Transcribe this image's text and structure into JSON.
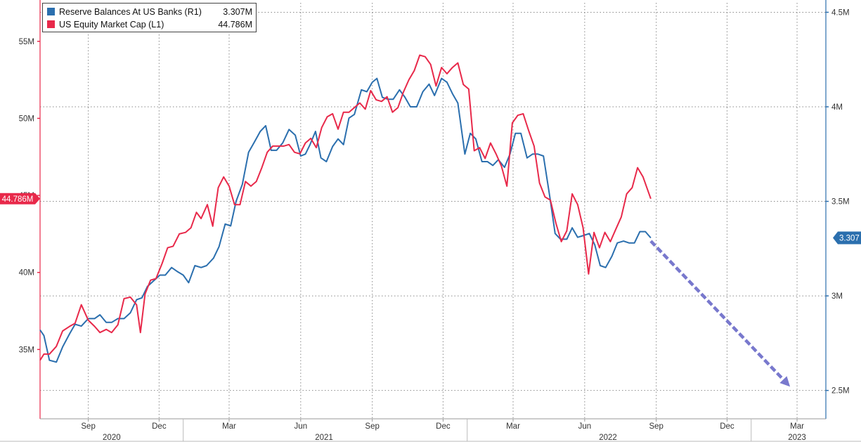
{
  "legend": {
    "items": [
      {
        "name": "Reserve Balances At US Banks (R1)",
        "value": "3.307M",
        "color": "#2b6fae"
      },
      {
        "name": "US Equity Market Cap  (L1)",
        "value": "44.786M",
        "color": "#e8294a"
      }
    ]
  },
  "chart_data": {
    "type": "line",
    "x_range": [
      "2020-07-01",
      "2023-04-07"
    ],
    "left_axis": {
      "ticks": [
        "35M",
        "40M",
        "45M",
        "50M",
        "55M"
      ],
      "tick_values": [
        35,
        40,
        45,
        50,
        55
      ],
      "range": [
        30.5,
        57.5
      ],
      "current_label": "44.786M"
    },
    "right_axis": {
      "ticks": [
        "2.5M",
        "3M",
        "3.5M",
        "4M",
        "4.5M"
      ],
      "tick_values": [
        2.5,
        3,
        3.5,
        4,
        4.5
      ],
      "range": [
        2.35,
        4.55
      ],
      "current_label": "3.307"
    },
    "x_month_ticks": [
      {
        "label": "Sep",
        "date": "2020-09-01"
      },
      {
        "label": "Dec",
        "date": "2020-12-01"
      },
      {
        "label": "Mar",
        "date": "2021-03-01"
      },
      {
        "label": "Jun",
        "date": "2021-06-01"
      },
      {
        "label": "Sep",
        "date": "2021-09-01"
      },
      {
        "label": "Dec",
        "date": "2021-12-01"
      },
      {
        "label": "Mar",
        "date": "2022-03-01"
      },
      {
        "label": "Jun",
        "date": "2022-06-01"
      },
      {
        "label": "Sep",
        "date": "2022-09-01"
      },
      {
        "label": "Dec",
        "date": "2022-12-01"
      },
      {
        "label": "Mar",
        "date": "2023-03-01"
      }
    ],
    "x_year_labels": [
      {
        "label": "2020",
        "date": "2020-10-01"
      },
      {
        "label": "2021",
        "date": "2021-07-01"
      },
      {
        "label": "2022",
        "date": "2022-07-01"
      },
      {
        "label": "2023",
        "date": "2023-03-01"
      }
    ],
    "year_dividers": [
      "2021-01-01",
      "2022-01-01",
      "2023-01-01"
    ],
    "grid": true,
    "series": [
      {
        "name": "Reserve Balances At US Banks (R1)",
        "axis": "right",
        "color": "#2b6fae",
        "points": [
          [
            "2020-07-01",
            2.82
          ],
          [
            "2020-07-06",
            2.79
          ],
          [
            "2020-07-13",
            2.66
          ],
          [
            "2020-07-22",
            2.65
          ],
          [
            "2020-07-30",
            2.73
          ],
          [
            "2020-08-08",
            2.8
          ],
          [
            "2020-08-15",
            2.85
          ],
          [
            "2020-08-23",
            2.84
          ],
          [
            "2020-09-01",
            2.88
          ],
          [
            "2020-09-09",
            2.88
          ],
          [
            "2020-09-16",
            2.9
          ],
          [
            "2020-09-24",
            2.86
          ],
          [
            "2020-10-01",
            2.86
          ],
          [
            "2020-10-09",
            2.88
          ],
          [
            "2020-10-17",
            2.88
          ],
          [
            "2020-10-25",
            2.91
          ],
          [
            "2020-11-02",
            2.98
          ],
          [
            "2020-11-09",
            2.99
          ],
          [
            "2020-11-16",
            3.05
          ],
          [
            "2020-11-24",
            3.08
          ],
          [
            "2020-12-02",
            3.11
          ],
          [
            "2020-12-09",
            3.11
          ],
          [
            "2020-12-17",
            3.15
          ],
          [
            "2020-12-24",
            3.13
          ],
          [
            "2021-01-01",
            3.11
          ],
          [
            "2021-01-08",
            3.07
          ],
          [
            "2021-01-16",
            3.16
          ],
          [
            "2021-01-24",
            3.15
          ],
          [
            "2021-01-31",
            3.16
          ],
          [
            "2021-02-09",
            3.2
          ],
          [
            "2021-02-16",
            3.26
          ],
          [
            "2021-02-24",
            3.38
          ],
          [
            "2021-03-03",
            3.37
          ],
          [
            "2021-03-10",
            3.5
          ],
          [
            "2021-03-18",
            3.59
          ],
          [
            "2021-03-26",
            3.76
          ],
          [
            "2021-04-02",
            3.81
          ],
          [
            "2021-04-10",
            3.87
          ],
          [
            "2021-04-17",
            3.9
          ],
          [
            "2021-04-24",
            3.77
          ],
          [
            "2021-05-01",
            3.77
          ],
          [
            "2021-05-09",
            3.81
          ],
          [
            "2021-05-17",
            3.88
          ],
          [
            "2021-05-25",
            3.85
          ],
          [
            "2021-06-01",
            3.74
          ],
          [
            "2021-06-07",
            3.75
          ],
          [
            "2021-06-13",
            3.8
          ],
          [
            "2021-06-20",
            3.87
          ],
          [
            "2021-06-27",
            3.73
          ],
          [
            "2021-07-04",
            3.71
          ],
          [
            "2021-07-12",
            3.79
          ],
          [
            "2021-07-19",
            3.83
          ],
          [
            "2021-07-26",
            3.8
          ],
          [
            "2021-08-02",
            3.94
          ],
          [
            "2021-08-09",
            3.96
          ],
          [
            "2021-08-18",
            4.09
          ],
          [
            "2021-08-25",
            4.08
          ],
          [
            "2021-09-01",
            4.13
          ],
          [
            "2021-09-07",
            4.15
          ],
          [
            "2021-09-14",
            4.05
          ],
          [
            "2021-09-21",
            4.04
          ],
          [
            "2021-09-28",
            4.04
          ],
          [
            "2021-10-06",
            4.09
          ],
          [
            "2021-10-13",
            4.05
          ],
          [
            "2021-10-20",
            4.0
          ],
          [
            "2021-10-28",
            4.0
          ],
          [
            "2021-11-05",
            4.08
          ],
          [
            "2021-11-13",
            4.12
          ],
          [
            "2021-11-20",
            4.06
          ],
          [
            "2021-11-29",
            4.15
          ],
          [
            "2021-12-06",
            4.13
          ],
          [
            "2021-12-13",
            4.07
          ],
          [
            "2021-12-20",
            4.02
          ],
          [
            "2021-12-29",
            3.75
          ],
          [
            "2022-01-05",
            3.86
          ],
          [
            "2022-01-12",
            3.83
          ],
          [
            "2022-01-20",
            3.71
          ],
          [
            "2022-01-27",
            3.71
          ],
          [
            "2022-02-03",
            3.69
          ],
          [
            "2022-02-10",
            3.72
          ],
          [
            "2022-02-18",
            3.68
          ],
          [
            "2022-02-25",
            3.75
          ],
          [
            "2022-03-04",
            3.86
          ],
          [
            "2022-03-11",
            3.86
          ],
          [
            "2022-03-19",
            3.73
          ],
          [
            "2022-03-26",
            3.75
          ],
          [
            "2022-04-02",
            3.75
          ],
          [
            "2022-04-09",
            3.74
          ],
          [
            "2022-04-17",
            3.53
          ],
          [
            "2022-04-24",
            3.33
          ],
          [
            "2022-05-01",
            3.3
          ],
          [
            "2022-05-09",
            3.3
          ],
          [
            "2022-05-16",
            3.36
          ],
          [
            "2022-05-23",
            3.31
          ],
          [
            "2022-05-31",
            3.32
          ],
          [
            "2022-06-07",
            3.33
          ],
          [
            "2022-06-14",
            3.27
          ],
          [
            "2022-06-21",
            3.16
          ],
          [
            "2022-06-28",
            3.15
          ],
          [
            "2022-07-06",
            3.21
          ],
          [
            "2022-07-13",
            3.28
          ],
          [
            "2022-07-21",
            3.29
          ],
          [
            "2022-07-28",
            3.28
          ],
          [
            "2022-08-04",
            3.28
          ],
          [
            "2022-08-11",
            3.34
          ],
          [
            "2022-08-18",
            3.34
          ],
          [
            "2022-08-25",
            3.307
          ]
        ]
      },
      {
        "name": "US Equity Market Cap  (L1)",
        "axis": "left",
        "color": "#e8294a",
        "points": [
          [
            "2020-07-01",
            34.3
          ],
          [
            "2020-07-06",
            34.7
          ],
          [
            "2020-07-13",
            34.7
          ],
          [
            "2020-07-22",
            35.2
          ],
          [
            "2020-07-30",
            36.2
          ],
          [
            "2020-08-08",
            36.5
          ],
          [
            "2020-08-15",
            36.7
          ],
          [
            "2020-08-23",
            37.9
          ],
          [
            "2020-09-01",
            36.9
          ],
          [
            "2020-09-09",
            36.5
          ],
          [
            "2020-09-16",
            36.1
          ],
          [
            "2020-09-24",
            36.3
          ],
          [
            "2020-10-01",
            36.1
          ],
          [
            "2020-10-09",
            36.6
          ],
          [
            "2020-10-17",
            38.3
          ],
          [
            "2020-10-25",
            38.4
          ],
          [
            "2020-11-02",
            37.9
          ],
          [
            "2020-11-07",
            36.1
          ],
          [
            "2020-11-13",
            38.6
          ],
          [
            "2020-11-20",
            39.5
          ],
          [
            "2020-11-27",
            39.6
          ],
          [
            "2020-12-05",
            40.6
          ],
          [
            "2020-12-12",
            41.6
          ],
          [
            "2020-12-19",
            41.7
          ],
          [
            "2020-12-27",
            42.5
          ],
          [
            "2021-01-04",
            42.6
          ],
          [
            "2021-01-11",
            42.9
          ],
          [
            "2021-01-18",
            43.9
          ],
          [
            "2021-01-24",
            43.5
          ],
          [
            "2021-02-01",
            44.4
          ],
          [
            "2021-02-08",
            43.0
          ],
          [
            "2021-02-15",
            45.5
          ],
          [
            "2021-02-22",
            46.2
          ],
          [
            "2021-03-01",
            45.6
          ],
          [
            "2021-03-08",
            44.4
          ],
          [
            "2021-03-15",
            44.4
          ],
          [
            "2021-03-22",
            45.9
          ],
          [
            "2021-03-29",
            45.6
          ],
          [
            "2021-04-05",
            45.9
          ],
          [
            "2021-04-12",
            46.8
          ],
          [
            "2021-04-19",
            47.8
          ],
          [
            "2021-04-26",
            48.2
          ],
          [
            "2021-05-03",
            48.2
          ],
          [
            "2021-05-10",
            48.2
          ],
          [
            "2021-05-17",
            48.3
          ],
          [
            "2021-05-24",
            47.8
          ],
          [
            "2021-05-31",
            47.7
          ],
          [
            "2021-06-07",
            48.4
          ],
          [
            "2021-06-14",
            48.7
          ],
          [
            "2021-06-21",
            48.1
          ],
          [
            "2021-06-28",
            49.4
          ],
          [
            "2021-07-05",
            50.1
          ],
          [
            "2021-07-12",
            50.3
          ],
          [
            "2021-07-19",
            49.3
          ],
          [
            "2021-07-26",
            50.4
          ],
          [
            "2021-08-02",
            50.4
          ],
          [
            "2021-08-09",
            50.7
          ],
          [
            "2021-08-16",
            51.0
          ],
          [
            "2021-08-23",
            50.6
          ],
          [
            "2021-08-30",
            51.8
          ],
          [
            "2021-09-06",
            51.2
          ],
          [
            "2021-09-13",
            51.1
          ],
          [
            "2021-09-20",
            51.4
          ],
          [
            "2021-09-27",
            50.4
          ],
          [
            "2021-10-04",
            50.7
          ],
          [
            "2021-10-11",
            51.7
          ],
          [
            "2021-10-18",
            52.5
          ],
          [
            "2021-10-25",
            53.1
          ],
          [
            "2021-11-01",
            54.1
          ],
          [
            "2021-11-08",
            54.0
          ],
          [
            "2021-11-15",
            53.5
          ],
          [
            "2021-11-22",
            52.1
          ],
          [
            "2021-11-29",
            53.3
          ],
          [
            "2021-12-06",
            52.9
          ],
          [
            "2021-12-13",
            53.3
          ],
          [
            "2021-12-20",
            53.6
          ],
          [
            "2021-12-27",
            52.2
          ],
          [
            "2022-01-03",
            51.9
          ],
          [
            "2022-01-10",
            47.9
          ],
          [
            "2022-01-17",
            48.1
          ],
          [
            "2022-01-24",
            47.4
          ],
          [
            "2022-01-31",
            48.4
          ],
          [
            "2022-02-07",
            47.7
          ],
          [
            "2022-02-14",
            46.9
          ],
          [
            "2022-02-21",
            45.6
          ],
          [
            "2022-02-28",
            49.7
          ],
          [
            "2022-03-07",
            50.2
          ],
          [
            "2022-03-14",
            50.3
          ],
          [
            "2022-03-21",
            49.2
          ],
          [
            "2022-03-28",
            48.2
          ],
          [
            "2022-04-04",
            45.8
          ],
          [
            "2022-04-11",
            44.9
          ],
          [
            "2022-04-18",
            44.7
          ],
          [
            "2022-04-25",
            43.2
          ],
          [
            "2022-05-02",
            42.0
          ],
          [
            "2022-05-09",
            42.7
          ],
          [
            "2022-05-16",
            45.1
          ],
          [
            "2022-05-23",
            44.4
          ],
          [
            "2022-05-30",
            42.9
          ],
          [
            "2022-06-06",
            39.9
          ],
          [
            "2022-06-13",
            42.6
          ],
          [
            "2022-06-20",
            41.6
          ],
          [
            "2022-06-27",
            42.6
          ],
          [
            "2022-07-04",
            42.0
          ],
          [
            "2022-07-11",
            42.8
          ],
          [
            "2022-07-18",
            43.6
          ],
          [
            "2022-07-25",
            45.1
          ],
          [
            "2022-08-01",
            45.5
          ],
          [
            "2022-08-08",
            46.8
          ],
          [
            "2022-08-15",
            46.2
          ],
          [
            "2022-08-25",
            44.786
          ]
        ]
      }
    ],
    "annotations": [
      {
        "type": "dashed-arrow",
        "from": {
          "date": "2022-08-25",
          "value": 3.29,
          "axis": "right"
        },
        "to": {
          "date": "2023-02-20",
          "value": 2.52,
          "axis": "right"
        },
        "color": "#6a6ac8"
      }
    ]
  }
}
